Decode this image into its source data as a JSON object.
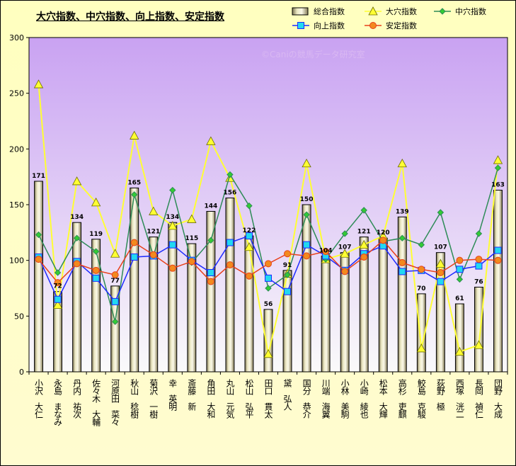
{
  "chart_data": {
    "type": "bar+line",
    "title": "大穴指数、中穴指数、向上指数、安定指数",
    "watermark": "©Caniの競馬データ研究室",
    "ylim": [
      0,
      300
    ],
    "yticks": [
      0,
      50,
      100,
      150,
      200,
      250,
      300
    ],
    "grid": false,
    "legend_position": "top-right",
    "categories": [
      "小沢　大仁",
      "永島　まなみ",
      "丹内　祐次",
      "佐々木　大輔",
      "河原田　菜々",
      "秋山　稔樹",
      "菊沢　一樹",
      "幸　英明",
      "斎藤　新",
      "角田　大和",
      "丸山　元気",
      "松山　弘平",
      "田口　貫太",
      "黛　弘人",
      "国分　恭介",
      "川端　海翼",
      "小林　美駒",
      "小崎　綾也",
      "松本　大輝",
      "高杉　吏麒",
      "鮫島　克駿",
      "荻野　極",
      "西塚　洸二",
      "長岡　禎仁",
      "団野　大成"
    ],
    "series": [
      {
        "name": "総合指数",
        "kind": "bar",
        "color": "#e8e4b8",
        "values": [
          171,
          72,
          134,
          119,
          77,
          165,
          121,
          134,
          115,
          144,
          156,
          122,
          56,
          91,
          150,
          104,
          107,
          121,
          120,
          139,
          70,
          107,
          61,
          76,
          163
        ]
      },
      {
        "name": "大穴指数",
        "kind": "line",
        "color": "#ffff33",
        "marker": "triangle",
        "values": [
          258,
          60,
          171,
          152,
          106,
          212,
          144,
          131,
          137,
          207,
          174,
          112,
          16,
          88,
          187,
          101,
          106,
          114,
          122,
          187,
          21,
          97,
          18,
          24,
          190
        ]
      },
      {
        "name": "中穴指数",
        "kind": "line",
        "color": "#2e8b57",
        "marker": "diamond",
        "values": [
          123,
          89,
          120,
          108,
          45,
          159,
          104,
          163,
          98,
          118,
          177,
          149,
          75,
          87,
          141,
          101,
          124,
          145,
          117,
          120,
          114,
          143,
          83,
          124,
          183
        ]
      },
      {
        "name": "向上指数",
        "kind": "line",
        "color": "#1c2aff",
        "marker": "square",
        "values": [
          103,
          65,
          99,
          84,
          63,
          103,
          104,
          114,
          100,
          89,
          116,
          122,
          84,
          72,
          114,
          104,
          91,
          106,
          113,
          90,
          91,
          81,
          92,
          95,
          109
        ]
      },
      {
        "name": "安定指数",
        "kind": "line",
        "color": "#e8401a",
        "marker": "circle",
        "values": [
          101,
          80,
          97,
          91,
          87,
          116,
          105,
          93,
          99,
          81,
          96,
          86,
          97,
          106,
          104,
          108,
          90,
          103,
          118,
          98,
          92,
          89,
          100,
          101,
          100
        ]
      }
    ]
  }
}
